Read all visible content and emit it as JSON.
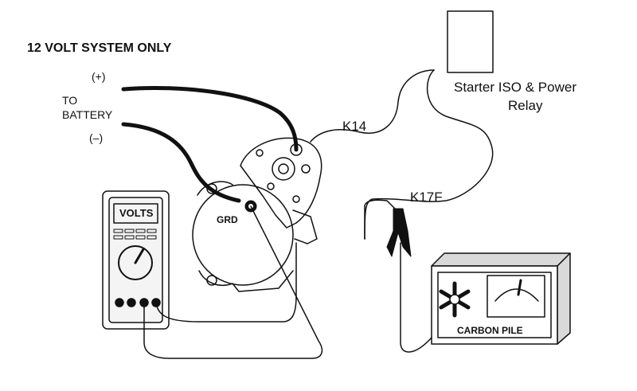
{
  "header": {
    "system_note": "12 VOLT SYSTEM ONLY"
  },
  "battery": {
    "positive": "(+)",
    "to_line1": "TO",
    "to_line2": "BATTERY",
    "negative": "(–)"
  },
  "relay": {
    "line1": "Starter ISO & Power",
    "line2": "Relay"
  },
  "wires": {
    "k14": "K14",
    "k17f": "K17F"
  },
  "starter": {
    "ground": "GRD"
  },
  "meter": {
    "display": "VOLTS"
  },
  "carbon_pile": {
    "label": "CARBON PILE"
  },
  "colors": {
    "ink": "#111111",
    "pile_fill": "#d9d9d9",
    "meter_face": "#f4f4f4"
  }
}
